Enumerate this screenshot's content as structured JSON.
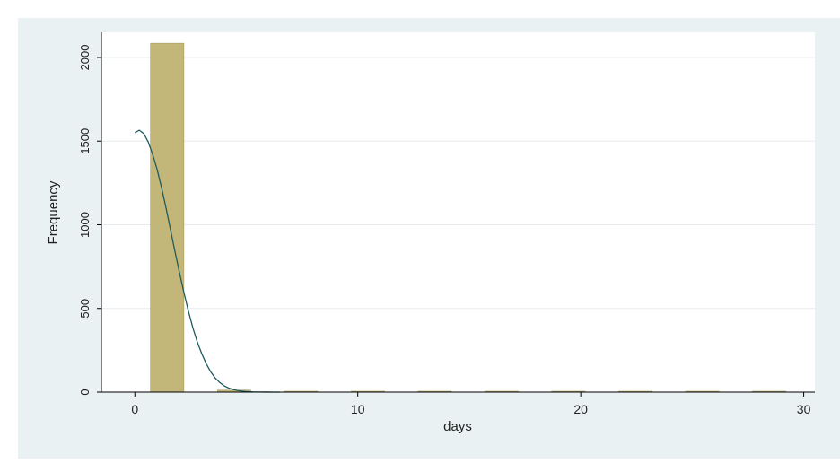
{
  "chart_data": {
    "type": "bar",
    "title": "",
    "xlabel": "days",
    "ylabel": "Frequency",
    "xlim": [
      -1.5,
      30.5
    ],
    "ylim": [
      0,
      2150
    ],
    "x_ticks": [
      0,
      10,
      20,
      30
    ],
    "y_ticks": [
      0,
      500,
      1000,
      1500,
      2000
    ],
    "grid": true,
    "bins": [
      {
        "start": 0.7,
        "end": 2.2,
        "value": 2085
      },
      {
        "start": 3.7,
        "end": 5.2,
        "value": 12
      },
      {
        "start": 6.7,
        "end": 8.2,
        "value": 3
      },
      {
        "start": 9.7,
        "end": 11.2,
        "value": 3
      },
      {
        "start": 12.7,
        "end": 14.2,
        "value": 2
      },
      {
        "start": 15.7,
        "end": 17.2,
        "value": 2
      },
      {
        "start": 18.7,
        "end": 20.2,
        "value": 2
      },
      {
        "start": 21.7,
        "end": 23.2,
        "value": 1
      },
      {
        "start": 24.7,
        "end": 26.2,
        "value": 2
      },
      {
        "start": 27.7,
        "end": 29.2,
        "value": 2
      }
    ],
    "curve": {
      "name": "normal density overlay",
      "x": [
        0,
        0.2,
        0.4,
        0.6,
        0.8,
        1.0,
        1.2,
        1.4,
        1.6,
        1.8,
        2.0,
        2.2,
        2.4,
        2.6,
        2.8,
        3.0,
        3.2,
        3.4,
        3.6,
        3.8,
        4.0,
        4.2,
        4.4,
        4.6,
        4.8,
        5.0,
        5.3,
        5.6,
        5.9,
        6.2,
        6.5
      ],
      "y": [
        1550,
        1565,
        1545,
        1495,
        1420,
        1330,
        1220,
        1100,
        970,
        840,
        715,
        595,
        485,
        385,
        300,
        230,
        170,
        122,
        85,
        58,
        38,
        25,
        16,
        10,
        6,
        3.5,
        1.5,
        0.6,
        0.2,
        0.05,
        0
      ]
    },
    "colors": {
      "bar_fill": "#c2b779",
      "bar_stroke": "#9c9155",
      "curve": "#1f5a5f",
      "plot_bg": "#ffffff",
      "outer_bg": "#eaf1f3",
      "grid": "#e6ecee"
    }
  }
}
